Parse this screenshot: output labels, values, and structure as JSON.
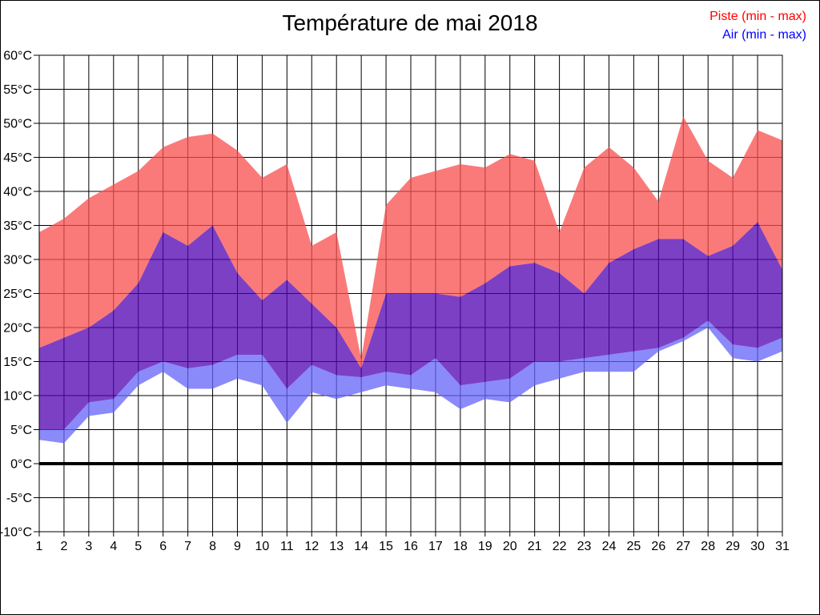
{
  "title": "Température de mai 2018",
  "legend": {
    "piste": "Piste (min - max)",
    "air": "Air (min - max)"
  },
  "colors": {
    "piste_fill": "#F84E4E",
    "air_fill": "#6363F8",
    "overlap_fill": "#5000B2",
    "fill_opacity": 0.75,
    "legend_piste_text": "#ff0000",
    "legend_air_text": "#0000ff",
    "grid": "#000000"
  },
  "chart_data": {
    "type": "area",
    "title": "Température de mai 2018",
    "xlabel": "",
    "ylabel": "",
    "x": [
      1,
      2,
      3,
      4,
      5,
      6,
      7,
      8,
      9,
      10,
      11,
      12,
      13,
      14,
      15,
      16,
      17,
      18,
      19,
      20,
      21,
      22,
      23,
      24,
      25,
      26,
      27,
      28,
      29,
      30,
      31
    ],
    "ylim": [
      -10,
      60
    ],
    "ytick_step": 5,
    "ytick_suffix": "°C",
    "grid": true,
    "zero_line_bold": true,
    "legend_position": "top-right",
    "series": [
      {
        "name": "Piste min",
        "values": [
          5,
          5,
          9,
          9.5,
          13.5,
          15,
          14,
          14.5,
          16,
          16,
          11,
          14.5,
          13,
          12.7,
          13.5,
          13,
          15.5,
          11.5,
          12,
          12.5,
          15,
          15,
          15.5,
          16,
          16.5,
          17,
          18.5,
          21,
          17.5,
          17,
          18.5
        ]
      },
      {
        "name": "Piste max",
        "values": [
          34,
          36,
          39,
          41,
          43,
          46.5,
          48,
          48.5,
          46,
          42,
          44,
          32,
          34,
          15.4,
          38,
          42,
          43,
          44,
          43.5,
          45.5,
          44.5,
          34,
          43.5,
          46.5,
          43.5,
          38.5,
          51,
          44.5,
          42,
          49,
          47.5
        ]
      },
      {
        "name": "Air min",
        "values": [
          3.5,
          3,
          7,
          7.5,
          11.5,
          13.5,
          11,
          11,
          12.5,
          11.5,
          6,
          10.5,
          9.5,
          10.5,
          11.5,
          11,
          10.5,
          8,
          9.5,
          9,
          11.5,
          12.5,
          13.5,
          13.5,
          13.5,
          16.5,
          18,
          20,
          15.5,
          15,
          16.5
        ]
      },
      {
        "name": "Air max",
        "values": [
          17,
          18.5,
          20,
          22.5,
          26.5,
          34,
          32,
          35,
          28,
          24,
          27,
          23.5,
          20,
          14,
          25,
          25,
          25,
          24.5,
          26.5,
          29,
          29.5,
          28,
          25,
          29.5,
          31.5,
          33,
          33,
          30.5,
          32,
          35.5,
          28.5
        ]
      }
    ]
  }
}
